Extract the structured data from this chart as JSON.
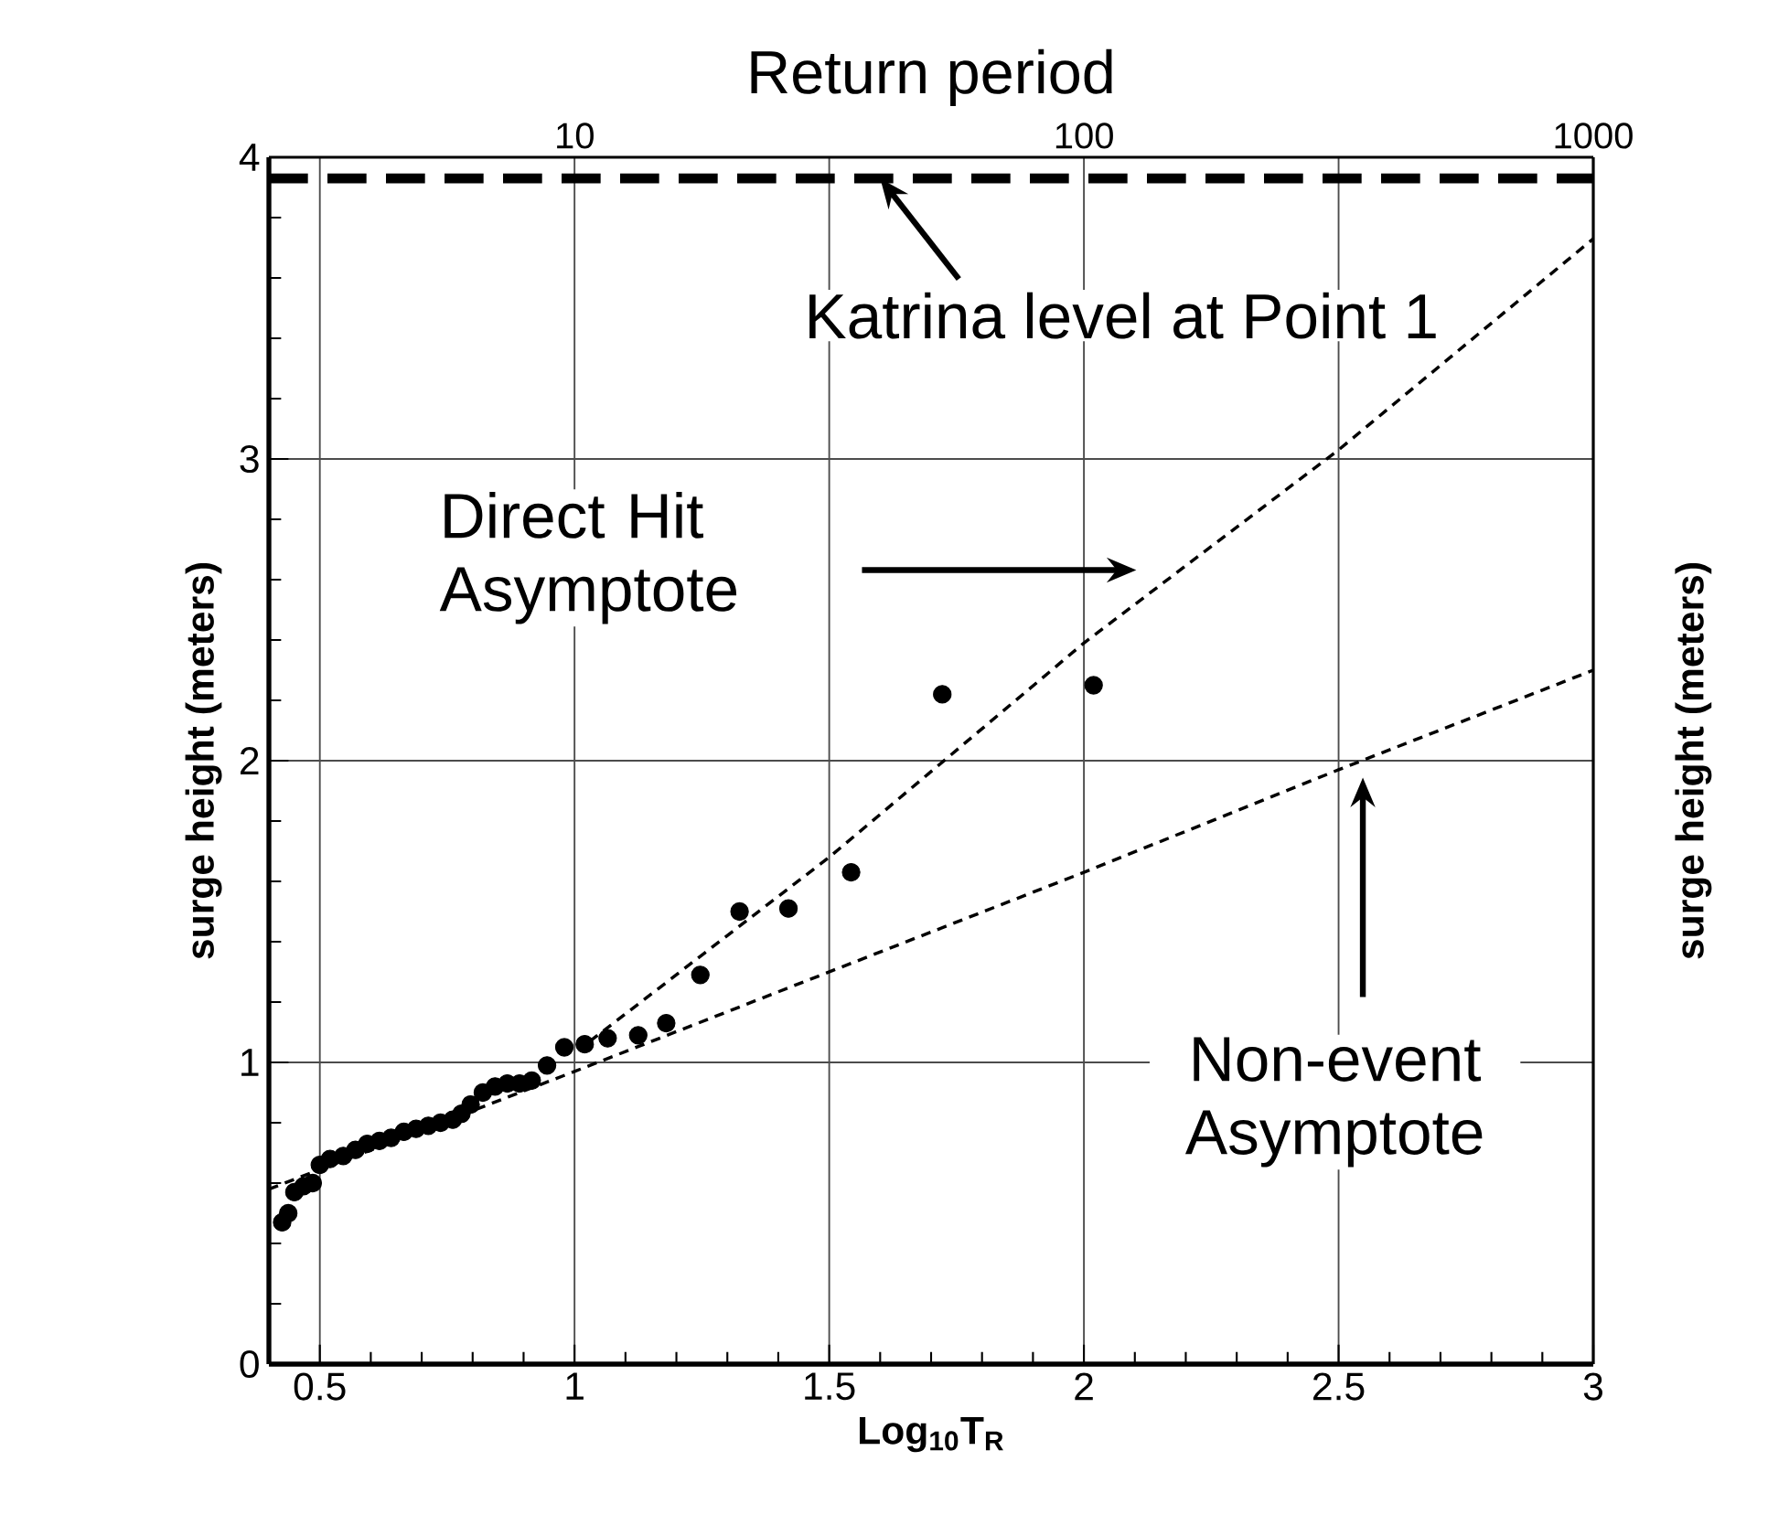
{
  "chart_data": {
    "type": "scatter",
    "x2label": "Return period",
    "xlabel": "Log$_{10}$T$_{R}$",
    "ylabel": "surge height (meters)",
    "y2label": "surge height (meters)",
    "xlim": [
      0.4,
      3
    ],
    "xticks": [
      0.5,
      1,
      1.5,
      2,
      2.5,
      3
    ],
    "ylim": [
      0,
      4
    ],
    "yticks": [
      0,
      1,
      2,
      3,
      4
    ],
    "x2lim": [
      2.51,
      1000
    ],
    "x2ticks": [
      10,
      100,
      1000
    ],
    "log": "x2",
    "grid": true,
    "series": [
      {
        "color": "#000000",
        "marker": "circle",
        "x": [
          0.426,
          0.438,
          0.45,
          0.468,
          0.486,
          0.5,
          0.52,
          0.546,
          0.57,
          0.593,
          0.617,
          0.64,
          0.665,
          0.689,
          0.713,
          0.737,
          0.761,
          0.778,
          0.796,
          0.82,
          0.844,
          0.868,
          0.892,
          0.916,
          0.946,
          0.98,
          1.02,
          1.065,
          1.125,
          1.18,
          1.247,
          1.324,
          1.42,
          1.543,
          1.722,
          2.019
        ],
        "values": [
          0.47,
          0.5,
          0.57,
          0.59,
          0.6,
          0.66,
          0.68,
          0.69,
          0.71,
          0.73,
          0.74,
          0.75,
          0.77,
          0.78,
          0.79,
          0.8,
          0.81,
          0.83,
          0.86,
          0.9,
          0.92,
          0.93,
          0.93,
          0.94,
          0.99,
          1.05,
          1.06,
          1.08,
          1.09,
          1.13,
          1.29,
          1.5,
          1.51,
          1.63,
          2.22,
          2.25
        ]
      },
      {
        "type": "line",
        "color": "#000000",
        "marker": "none",
        "line_style": "dashed",
        "x": [
          1.03,
          1.5,
          2,
          2.5,
          3
        ],
        "values": [
          1.07,
          1.68,
          2.39,
          3.03,
          3.73
        ]
      },
      {
        "type": "line",
        "color": "#000000",
        "marker": "none",
        "line_style": "dashed",
        "x": [
          0.4,
          1,
          2,
          2.5,
          3
        ],
        "values": [
          0.58,
          0.97,
          1.63,
          1.97,
          2.3
        ]
      }
    ],
    "ref_lines": [
      {
        "axis": "y",
        "value": 3.93,
        "color": "#000000",
        "line_style": "dashed"
      }
    ],
    "annotations": [
      {
        "text": "Katrina level at Point 1",
        "x": 1.6,
        "y": 3.93
      },
      "Direct Hit Asymptote",
      "Non-event Asymptote"
    ]
  }
}
